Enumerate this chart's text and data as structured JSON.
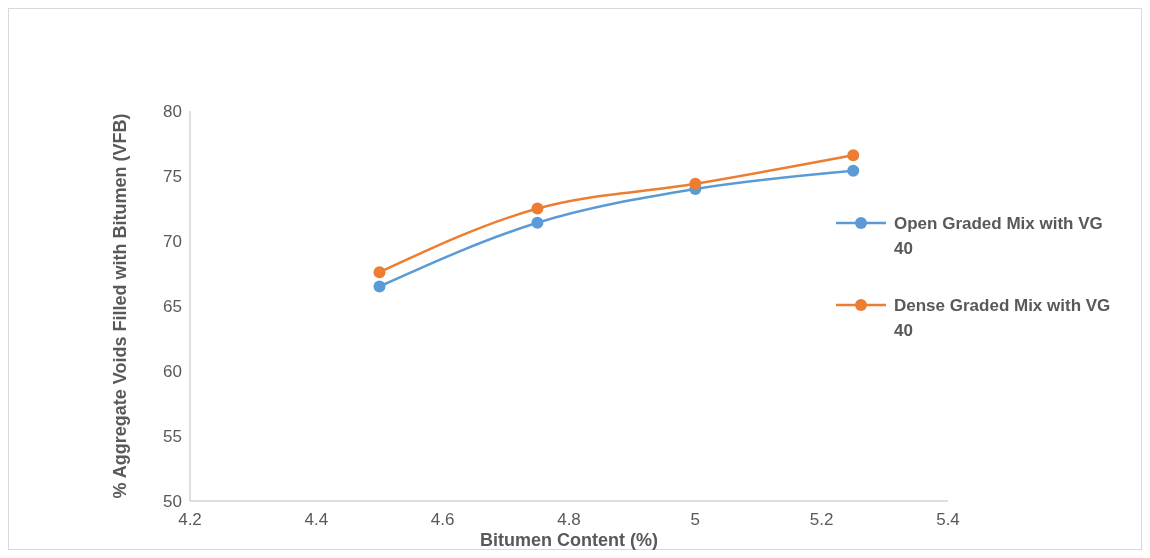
{
  "chart_data": {
    "type": "line",
    "xlabel": "Bitumen Content (%)",
    "ylabel": "% Aggregate Voids Filled with Bitumen (VFB)",
    "xlim": [
      4.2,
      5.4
    ],
    "xticks": [
      4.2,
      4.4,
      4.6,
      4.8,
      5,
      5.2,
      5.4
    ],
    "ylim": [
      50,
      80
    ],
    "yticks": [
      50,
      55,
      60,
      65,
      70,
      75,
      80
    ],
    "x": [
      4.5,
      4.75,
      5,
      5.25
    ],
    "series": [
      {
        "name": "Open Graded Mix with VG 40",
        "color": "#5b9bd5",
        "values": [
          66.5,
          71.4,
          74.0,
          75.4
        ]
      },
      {
        "name": "Dense Graded Mix with VG 40",
        "color": "#ed7d31",
        "values": [
          67.6,
          72.5,
          74.4,
          76.6
        ]
      }
    ],
    "marker": "circle",
    "legend": "right",
    "grid": false
  }
}
